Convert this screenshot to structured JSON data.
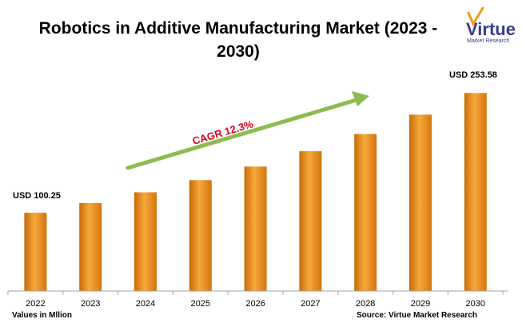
{
  "chart_data": {
    "type": "bar",
    "title_line1": "Robotics in Additive Manufacturing Market (2023 -",
    "title_line2": "2030)",
    "categories": [
      "2022",
      "2023",
      "2024",
      "2025",
      "2026",
      "2027",
      "2028",
      "2029",
      "2030"
    ],
    "values": [
      100.25,
      112.6,
      126.4,
      142.0,
      159.4,
      179.0,
      201.0,
      225.8,
      253.58
    ],
    "ylim": [
      0,
      260
    ],
    "grid": false,
    "data_labels": {
      "first": "USD 100.25",
      "last": "USD 253.58"
    },
    "annotation": "CAGR 12.3%",
    "xlabel": "",
    "ylabel": "",
    "bar_color": "#f39a1e",
    "bar_color_dark": "#c96a08",
    "arrow_color": "#8dbb4f"
  },
  "footer": {
    "units_note": "Values in Mllion",
    "source": "Source: Virtue Market Research"
  },
  "logo": {
    "name": "Virtue",
    "tagline": "Market Research",
    "colors": {
      "primary": "#3b3b8f",
      "accent": "#f39a1e"
    }
  }
}
